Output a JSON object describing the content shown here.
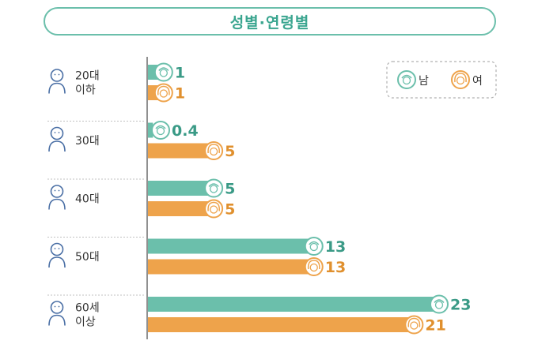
{
  "chart_data": {
    "type": "bar",
    "orientation": "horizontal",
    "title": "성별·연령별",
    "categories": [
      [
        "20대",
        "이하"
      ],
      [
        "30대"
      ],
      [
        "40대"
      ],
      [
        "50대"
      ],
      [
        "60세",
        "이상"
      ]
    ],
    "series": [
      {
        "name": "남",
        "values": [
          1,
          0.4,
          5,
          13,
          23
        ],
        "value_labels": [
          "1",
          "0.4",
          "5",
          "13",
          "23"
        ],
        "color": "#6bbfab",
        "label_color": "#3a9a86"
      },
      {
        "name": "여",
        "values": [
          1,
          5,
          5,
          13,
          21
        ],
        "value_labels": [
          "1",
          "5",
          "5",
          "13",
          "21"
        ],
        "color": "#eea34b",
        "label_color": "#e0902e"
      }
    ],
    "xlim": [
      0,
      23
    ],
    "grid": false,
    "legend_position": "top-right"
  },
  "colors": {
    "title": "#3aa58f",
    "title_border": "#6bbfab",
    "male": "#6bbfab",
    "female": "#eea34b",
    "person_icon": "#4a6fa5",
    "separator": "#c0c0c0"
  }
}
